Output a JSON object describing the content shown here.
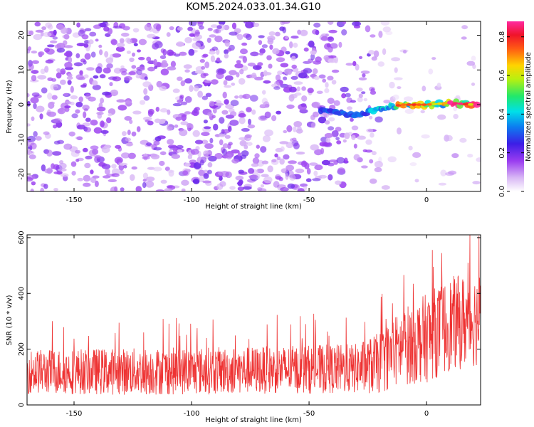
{
  "title": "KOM5.2024.033.01.34.G10",
  "chart_data": [
    {
      "type": "heatmap",
      "xlabel": "Height of straight line (km)",
      "ylabel": "Frequency (Hz)",
      "xlim": [
        -170,
        23
      ],
      "ylim": [
        -25,
        24
      ],
      "xticks": [
        -150,
        -100,
        -50,
        0
      ],
      "yticks": [
        -20,
        -10,
        0,
        10,
        20
      ],
      "colorbar": {
        "label": "Normalized spectral amplitude",
        "range": [
          0.0,
          0.88
        ],
        "ticks": [
          "0.0",
          "0.2",
          "0.4",
          "0.6",
          "0.8"
        ],
        "colormap": "white-purple-blue-cyan-green-yellow-red-magenta"
      },
      "ridge": {
        "x": [
          -50,
          -40,
          -30,
          -20,
          -10,
          0,
          10,
          20
        ],
        "y": [
          -1,
          -2,
          -3,
          -1,
          0,
          0,
          0.5,
          0
        ],
        "peak_amplitude": 0.85
      }
    },
    {
      "type": "line",
      "xlabel": "Height of straight line (km)",
      "ylabel": "SNR (10 * v/v)",
      "xlim": [
        -170,
        23
      ],
      "ylim": [
        0,
        610
      ],
      "xticks": [
        -150,
        -100,
        -50,
        0
      ],
      "yticks": [
        0,
        200,
        400,
        600
      ],
      "color": "#ee3333",
      "trend": {
        "x": [
          -170,
          -120,
          -70,
          -30,
          -20,
          -10,
          0,
          10,
          23
        ],
        "mean": [
          120,
          120,
          125,
          130,
          150,
          210,
          240,
          290,
          310
        ],
        "spread": [
          80,
          85,
          85,
          90,
          110,
          140,
          160,
          170,
          170
        ]
      }
    }
  ]
}
